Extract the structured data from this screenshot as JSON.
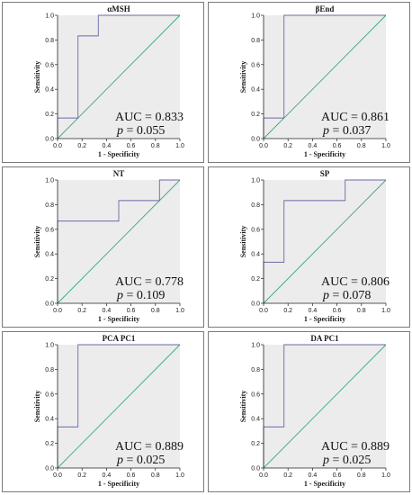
{
  "chart_data": [
    {
      "type": "line",
      "title": "αMSH",
      "xlabel": "1 - Specificity",
      "ylabel": "Sensitivity",
      "xlim": [
        0,
        1
      ],
      "ylim": [
        0,
        1
      ],
      "ticks": [
        "0.0",
        "0.2",
        "0.4",
        "0.6",
        "0.8",
        "1.0"
      ],
      "roc": {
        "x": [
          0,
          0,
          0.167,
          0.167,
          0.333,
          0.333,
          1
        ],
        "y": [
          0,
          0.167,
          0.167,
          0.833,
          0.833,
          1,
          1
        ]
      },
      "auc_label": "AUC = 0.833",
      "p_prefix": "p",
      "p_value": " = 0.055"
    },
    {
      "type": "line",
      "title": "βEnd",
      "xlabel": "1 - Specificity",
      "ylabel": "Sensitivity",
      "xlim": [
        0,
        1
      ],
      "ylim": [
        0,
        1
      ],
      "ticks": [
        "0.0",
        "0.2",
        "0.4",
        "0.6",
        "0.8",
        "1.0"
      ],
      "roc": {
        "x": [
          0,
          0,
          0.167,
          0.167,
          1
        ],
        "y": [
          0,
          0.167,
          0.167,
          1,
          1
        ]
      },
      "auc_label": "AUC = 0.861",
      "p_prefix": "p",
      "p_value": " = 0.037"
    },
    {
      "type": "line",
      "title": "NT",
      "xlabel": "1 - Specificity",
      "ylabel": "Sensitivity",
      "xlim": [
        0,
        1
      ],
      "ylim": [
        0,
        1
      ],
      "ticks": [
        "0.0",
        "0.2",
        "0.4",
        "0.6",
        "0.8",
        "1.0"
      ],
      "roc": {
        "x": [
          0,
          0,
          0.5,
          0.5,
          0.833,
          0.833,
          1
        ],
        "y": [
          0,
          0.667,
          0.667,
          0.833,
          0.833,
          1,
          1
        ]
      },
      "auc_label": "AUC = 0.778",
      "p_prefix": "p",
      "p_value": " = 0.109"
    },
    {
      "type": "line",
      "title": "SP",
      "xlabel": "1 - Specificity",
      "ylabel": "Sensitivity",
      "xlim": [
        0,
        1
      ],
      "ylim": [
        0,
        1
      ],
      "ticks": [
        "0.0",
        "0.2",
        "0.4",
        "0.6",
        "0.8",
        "1.0"
      ],
      "roc": {
        "x": [
          0,
          0,
          0.167,
          0.167,
          0.667,
          0.667,
          1
        ],
        "y": [
          0,
          0.333,
          0.333,
          0.833,
          0.833,
          1,
          1
        ]
      },
      "auc_label": "AUC = 0.806",
      "p_prefix": "p",
      "p_value": " = 0.078"
    },
    {
      "type": "line",
      "title": "PCA PC1",
      "xlabel": "1 - Specificity",
      "ylabel": "Sensitivity",
      "xlim": [
        0,
        1
      ],
      "ylim": [
        0,
        1
      ],
      "ticks": [
        "0.0",
        "0.2",
        "0.4",
        "0.6",
        "0.8",
        "1.0"
      ],
      "roc": {
        "x": [
          0,
          0,
          0.167,
          0.167,
          1
        ],
        "y": [
          0,
          0.333,
          0.333,
          1,
          1
        ]
      },
      "auc_label": "AUC = 0.889",
      "p_prefix": "p",
      "p_value": " = 0.025"
    },
    {
      "type": "line",
      "title": "DA PC1",
      "xlabel": "1 - Specificity",
      "ylabel": "Sensitivity",
      "xlim": [
        0,
        1
      ],
      "ylim": [
        0,
        1
      ],
      "ticks": [
        "0.0",
        "0.2",
        "0.4",
        "0.6",
        "0.8",
        "1.0"
      ],
      "roc": {
        "x": [
          0,
          0,
          0.167,
          0.167,
          1
        ],
        "y": [
          0,
          0.333,
          0.333,
          1,
          1
        ]
      },
      "auc_label": "AUC = 0.889",
      "p_prefix": "p",
      "p_value": " = 0.025"
    }
  ],
  "colors": {
    "plot_background": "#ececec",
    "roc_curve": "#6a6aa6",
    "reference_line": "#3aa88a",
    "axis": "#222222"
  }
}
